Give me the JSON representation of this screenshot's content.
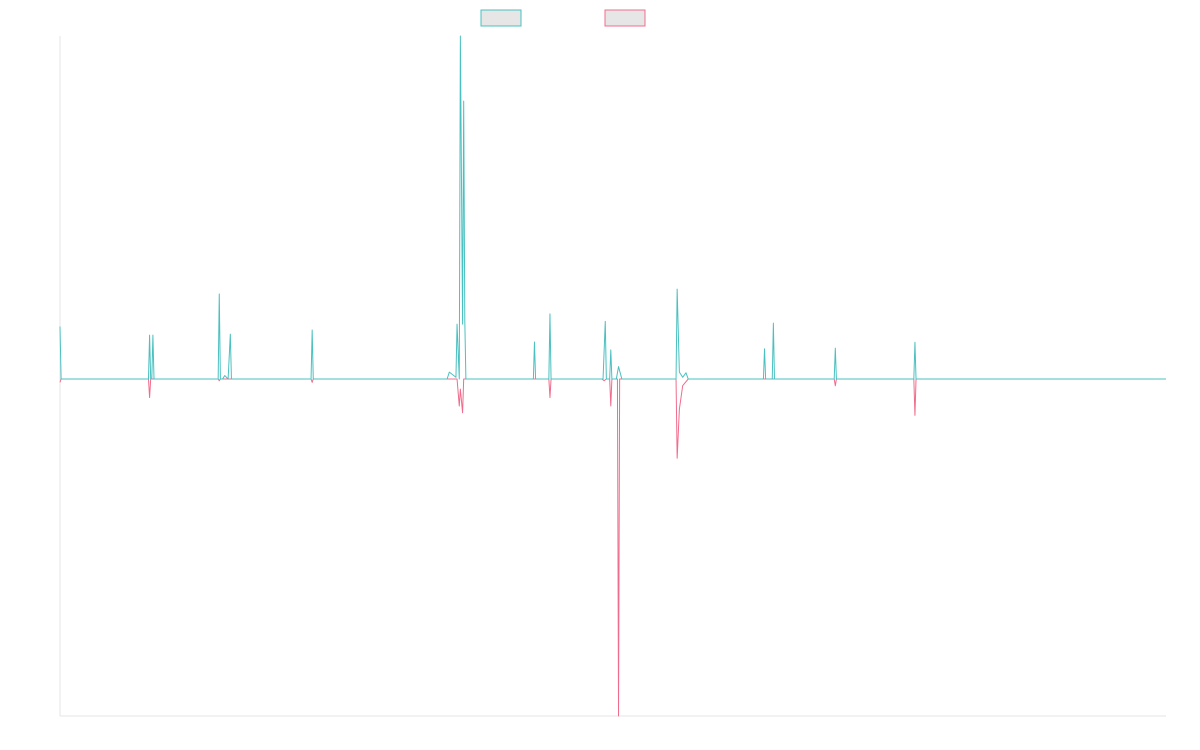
{
  "chart_data": {
    "type": "line",
    "title": "",
    "xlabel": "",
    "ylabel": "",
    "grid": false,
    "legend_position": "top-center",
    "xlim": [
      0,
      1000
    ],
    "ylim": [
      -1,
      1
    ],
    "series": [
      {
        "color": "#4bc0c0",
        "points": [
          [
            0,
            0.153
          ],
          [
            1,
            0.0
          ],
          [
            80,
            0.0
          ],
          [
            81,
            0.128
          ],
          [
            82,
            0.0
          ],
          [
            83,
            0.0
          ],
          [
            84,
            0.128
          ],
          [
            85,
            0.0
          ],
          [
            143,
            0.0
          ],
          [
            144,
            0.248
          ],
          [
            145,
            0.0
          ],
          [
            147,
            0.0
          ],
          [
            149,
            0.01
          ],
          [
            152,
            0.0
          ],
          [
            154,
            0.131
          ],
          [
            155,
            0.0
          ],
          [
            227,
            0.0
          ],
          [
            228,
            0.143
          ],
          [
            229,
            0.0
          ],
          [
            350,
            0.0
          ],
          [
            352,
            0.02
          ],
          [
            358,
            0.005
          ],
          [
            359,
            0.16
          ],
          [
            361,
            0.0
          ],
          [
            362,
            1.0
          ],
          [
            364,
            0.16
          ],
          [
            365,
            0.81
          ],
          [
            366,
            0.17
          ],
          [
            367,
            0.0
          ],
          [
            428,
            0.0
          ],
          [
            429,
            0.108
          ],
          [
            430,
            0.0
          ],
          [
            442,
            0.0
          ],
          [
            443,
            0.19
          ],
          [
            444,
            0.0
          ],
          [
            491,
            0.0
          ],
          [
            493,
            0.168
          ],
          [
            494,
            0.0
          ],
          [
            497,
            0.0
          ],
          [
            498,
            0.085
          ],
          [
            499,
            0.0
          ],
          [
            503,
            0.0
          ],
          [
            505,
            0.036
          ],
          [
            508,
            0.0
          ],
          [
            557,
            0.0
          ],
          [
            558,
            0.262
          ],
          [
            560,
            0.02
          ],
          [
            563,
            0.005
          ],
          [
            566,
            0.018
          ],
          [
            568,
            0.0
          ],
          [
            636,
            0.0
          ],
          [
            637,
            0.088
          ],
          [
            638,
            0.0
          ],
          [
            644,
            0.0
          ],
          [
            645,
            0.163
          ],
          [
            646,
            0.0
          ],
          [
            700,
            0.0
          ],
          [
            701,
            0.09
          ],
          [
            702,
            0.0
          ],
          [
            772,
            0.0
          ],
          [
            773,
            0.107
          ],
          [
            774,
            0.0
          ],
          [
            1000,
            0.0
          ]
        ]
      },
      {
        "color": "#f06c8c",
        "points": [
          [
            0,
            -0.01
          ],
          [
            1,
            0.0
          ],
          [
            80,
            0.0
          ],
          [
            81,
            -0.055
          ],
          [
            82,
            0.0
          ],
          [
            143,
            0.0
          ],
          [
            144,
            -0.005
          ],
          [
            145,
            0.0
          ],
          [
            227,
            0.0
          ],
          [
            228,
            -0.01
          ],
          [
            229,
            0.0
          ],
          [
            359,
            0.0
          ],
          [
            361,
            -0.08
          ],
          [
            362,
            -0.03
          ],
          [
            364,
            -0.1
          ],
          [
            365,
            0.0
          ],
          [
            442,
            0.0
          ],
          [
            443,
            -0.055
          ],
          [
            444,
            0.0
          ],
          [
            490,
            0.0
          ],
          [
            492,
            -0.005
          ],
          [
            494,
            0.0
          ],
          [
            497,
            0.0
          ],
          [
            498,
            -0.08
          ],
          [
            499,
            0.0
          ],
          [
            504,
            0.0
          ],
          [
            505,
            -1.0
          ],
          [
            506,
            0.0
          ],
          [
            557,
            0.0
          ],
          [
            558,
            -0.235
          ],
          [
            560,
            -0.09
          ],
          [
            563,
            -0.02
          ],
          [
            568,
            0.0
          ],
          [
            700,
            0.0
          ],
          [
            701,
            -0.02
          ],
          [
            702,
            0.0
          ],
          [
            772,
            0.0
          ],
          [
            773,
            -0.108
          ],
          [
            774,
            0.0
          ],
          [
            1000,
            0.0
          ]
        ]
      }
    ]
  }
}
